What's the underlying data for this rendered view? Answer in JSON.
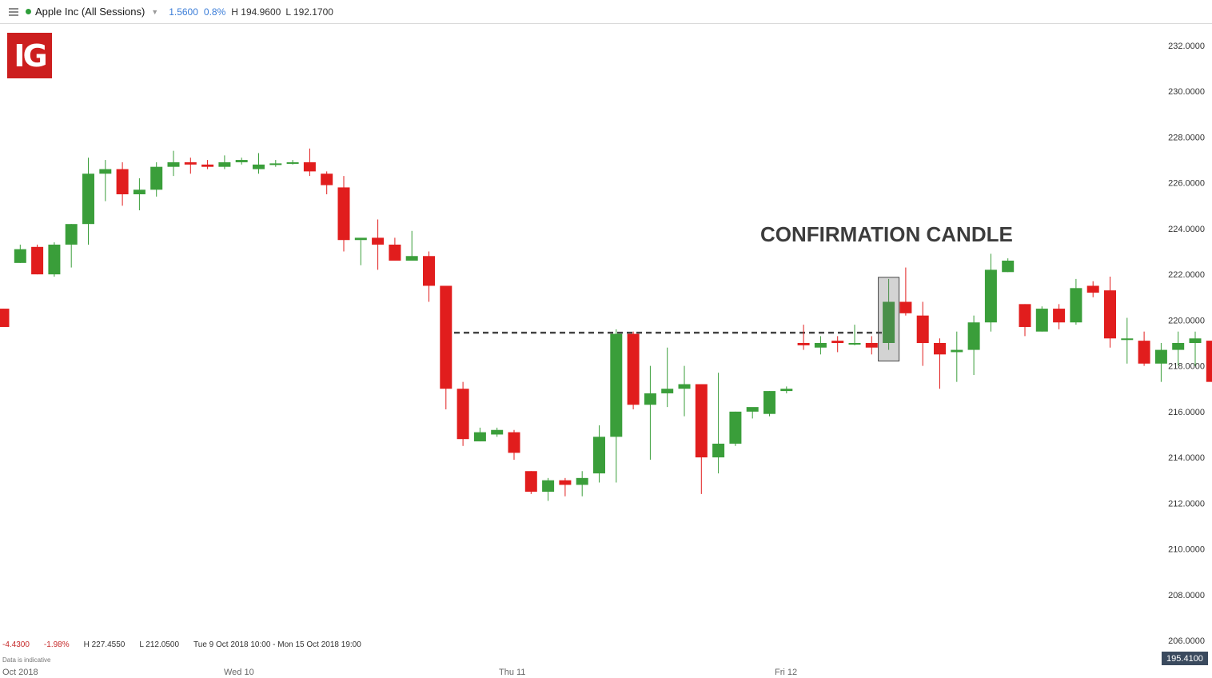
{
  "header": {
    "title": "Apple Inc (All Sessions)",
    "change": "1.5600",
    "change_pct": "0.8%",
    "high": "H 194.9600",
    "low": "L 192.1700",
    "status_color": "#2e9e3a"
  },
  "logo_text": "IG",
  "footer": {
    "change": "-4.4300",
    "change_pct": "-1.98%",
    "high": "H 227.4550",
    "low": "L 212.0500",
    "range": "Tue 9 Oct 2018 10:00 - Mon 15 Oct 2018 19:00",
    "note": "Data is indicative",
    "current_price": "195.4100"
  },
  "chart_data": {
    "type": "candlestick",
    "annotation": "CONFIRMATION CANDLE",
    "y_ticks": [
      "232.0000",
      "230.0000",
      "228.0000",
      "226.0000",
      "224.0000",
      "222.0000",
      "220.0000",
      "218.0000",
      "216.0000",
      "214.0000",
      "212.0000",
      "210.0000",
      "208.0000",
      "206.0000"
    ],
    "x_ticks": [
      "Oct 2018",
      "Wed 10",
      "Thu 11",
      "Fri 12"
    ],
    "ylim": [
      205.4,
      233.7
    ],
    "resistance_level": 219.45,
    "confirmation_index": 52,
    "up_color": "#3a9e3a",
    "down_color": "#e11d1d",
    "candles": [
      {
        "o": 220.5,
        "h": 220.5,
        "l": 219.8,
        "c": 219.7
      },
      {
        "o": 222.5,
        "h": 223.3,
        "l": 222.5,
        "c": 223.1
      },
      {
        "o": 223.2,
        "h": 223.3,
        "l": 222.0,
        "c": 222.0
      },
      {
        "o": 222.0,
        "h": 223.4,
        "l": 221.9,
        "c": 223.3
      },
      {
        "o": 223.3,
        "h": 224.2,
        "l": 222.3,
        "c": 224.2
      },
      {
        "o": 224.2,
        "h": 227.1,
        "l": 223.3,
        "c": 226.4
      },
      {
        "o": 226.4,
        "h": 227.0,
        "l": 225.2,
        "c": 226.6
      },
      {
        "o": 226.6,
        "h": 226.9,
        "l": 225.0,
        "c": 225.5
      },
      {
        "o": 225.5,
        "h": 226.2,
        "l": 224.8,
        "c": 225.7
      },
      {
        "o": 225.7,
        "h": 226.9,
        "l": 225.4,
        "c": 226.7
      },
      {
        "o": 226.7,
        "h": 227.4,
        "l": 226.3,
        "c": 226.9
      },
      {
        "o": 226.9,
        "h": 227.1,
        "l": 226.4,
        "c": 226.8
      },
      {
        "o": 226.8,
        "h": 227.0,
        "l": 226.6,
        "c": 226.7
      },
      {
        "o": 226.7,
        "h": 227.2,
        "l": 226.6,
        "c": 226.9
      },
      {
        "o": 226.9,
        "h": 227.1,
        "l": 226.8,
        "c": 227.0
      },
      {
        "o": 226.6,
        "h": 227.3,
        "l": 226.4,
        "c": 226.8
      },
      {
        "o": 226.8,
        "h": 227.0,
        "l": 226.7,
        "c": 226.85
      },
      {
        "o": 226.85,
        "h": 227.0,
        "l": 226.8,
        "c": 226.9
      },
      {
        "o": 226.9,
        "h": 227.5,
        "l": 226.3,
        "c": 226.5
      },
      {
        "o": 226.4,
        "h": 226.5,
        "l": 225.5,
        "c": 225.9
      },
      {
        "o": 225.8,
        "h": 226.3,
        "l": 223.0,
        "c": 223.5
      },
      {
        "o": 223.5,
        "h": 223.5,
        "l": 222.4,
        "c": 223.6
      },
      {
        "o": 223.6,
        "h": 224.4,
        "l": 222.2,
        "c": 223.3
      },
      {
        "o": 223.3,
        "h": 223.6,
        "l": 222.6,
        "c": 222.6
      },
      {
        "o": 222.6,
        "h": 223.9,
        "l": 222.6,
        "c": 222.8
      },
      {
        "o": 222.8,
        "h": 223.0,
        "l": 220.8,
        "c": 221.5
      },
      {
        "o": 221.5,
        "h": 221.5,
        "l": 216.1,
        "c": 217.0
      },
      {
        "o": 217.0,
        "h": 217.3,
        "l": 214.5,
        "c": 214.8
      },
      {
        "o": 214.7,
        "h": 215.3,
        "l": 214.7,
        "c": 215.1
      },
      {
        "o": 215.0,
        "h": 215.3,
        "l": 214.9,
        "c": 215.2
      },
      {
        "o": 215.1,
        "h": 215.2,
        "l": 213.9,
        "c": 214.2
      },
      {
        "o": 213.4,
        "h": 213.4,
        "l": 212.4,
        "c": 212.5
      },
      {
        "o": 212.5,
        "h": 213.1,
        "l": 212.1,
        "c": 213.0
      },
      {
        "o": 213.0,
        "h": 213.1,
        "l": 212.3,
        "c": 212.8
      },
      {
        "o": 212.8,
        "h": 213.4,
        "l": 212.3,
        "c": 213.1
      },
      {
        "o": 213.3,
        "h": 215.4,
        "l": 212.9,
        "c": 214.9
      },
      {
        "o": 214.9,
        "h": 219.6,
        "l": 212.9,
        "c": 219.4
      },
      {
        "o": 219.4,
        "h": 219.5,
        "l": 216.1,
        "c": 216.3
      },
      {
        "o": 216.3,
        "h": 218.0,
        "l": 213.9,
        "c": 216.8
      },
      {
        "o": 216.8,
        "h": 218.8,
        "l": 216.2,
        "c": 217.0
      },
      {
        "o": 217.0,
        "h": 218.0,
        "l": 215.8,
        "c": 217.2
      },
      {
        "o": 217.2,
        "h": 217.2,
        "l": 212.4,
        "c": 214.0
      },
      {
        "o": 214.0,
        "h": 217.7,
        "l": 213.3,
        "c": 214.6
      },
      {
        "o": 214.6,
        "h": 216.0,
        "l": 214.5,
        "c": 216.0
      },
      {
        "o": 216.0,
        "h": 216.1,
        "l": 215.7,
        "c": 216.2
      },
      {
        "o": 215.9,
        "h": 216.9,
        "l": 215.8,
        "c": 216.9
      },
      {
        "o": 216.9,
        "h": 217.1,
        "l": 216.8,
        "c": 217.0
      },
      {
        "o": 219.0,
        "h": 219.8,
        "l": 218.7,
        "c": 218.9
      },
      {
        "o": 218.8,
        "h": 219.3,
        "l": 218.5,
        "c": 219.0
      },
      {
        "o": 219.1,
        "h": 219.3,
        "l": 218.6,
        "c": 219.0
      },
      {
        "o": 219.0,
        "h": 219.8,
        "l": 218.9,
        "c": 219.0
      },
      {
        "o": 219.0,
        "h": 219.3,
        "l": 218.5,
        "c": 218.8
      },
      {
        "o": 219.0,
        "h": 221.8,
        "l": 218.7,
        "c": 220.8
      },
      {
        "o": 220.8,
        "h": 222.3,
        "l": 220.2,
        "c": 220.3
      },
      {
        "o": 220.2,
        "h": 220.8,
        "l": 218.0,
        "c": 219.0
      },
      {
        "o": 219.0,
        "h": 219.2,
        "l": 217.0,
        "c": 218.5
      },
      {
        "o": 218.6,
        "h": 219.5,
        "l": 217.3,
        "c": 218.7
      },
      {
        "o": 218.7,
        "h": 220.2,
        "l": 217.6,
        "c": 219.9
      },
      {
        "o": 219.9,
        "h": 222.9,
        "l": 219.5,
        "c": 222.2
      },
      {
        "o": 222.1,
        "h": 222.7,
        "l": 222.1,
        "c": 222.6
      },
      {
        "o": 220.7,
        "h": 220.7,
        "l": 219.3,
        "c": 219.7
      },
      {
        "o": 219.5,
        "h": 220.6,
        "l": 219.5,
        "c": 220.5
      },
      {
        "o": 220.5,
        "h": 220.7,
        "l": 219.6,
        "c": 219.9
      },
      {
        "o": 219.9,
        "h": 221.8,
        "l": 219.8,
        "c": 221.4
      },
      {
        "o": 221.5,
        "h": 221.7,
        "l": 221.0,
        "c": 221.2
      },
      {
        "o": 221.3,
        "h": 221.9,
        "l": 218.8,
        "c": 219.2
      },
      {
        "o": 219.2,
        "h": 220.1,
        "l": 218.1,
        "c": 219.2
      },
      {
        "o": 219.1,
        "h": 219.5,
        "l": 218.0,
        "c": 218.1
      },
      {
        "o": 218.1,
        "h": 219.0,
        "l": 217.3,
        "c": 218.7
      },
      {
        "o": 218.7,
        "h": 219.5,
        "l": 218.0,
        "c": 219.0
      },
      {
        "o": 219.0,
        "h": 219.5,
        "l": 218.0,
        "c": 219.2
      },
      {
        "o": 219.1,
        "h": 219.1,
        "l": 217.3,
        "c": 217.3
      }
    ]
  }
}
